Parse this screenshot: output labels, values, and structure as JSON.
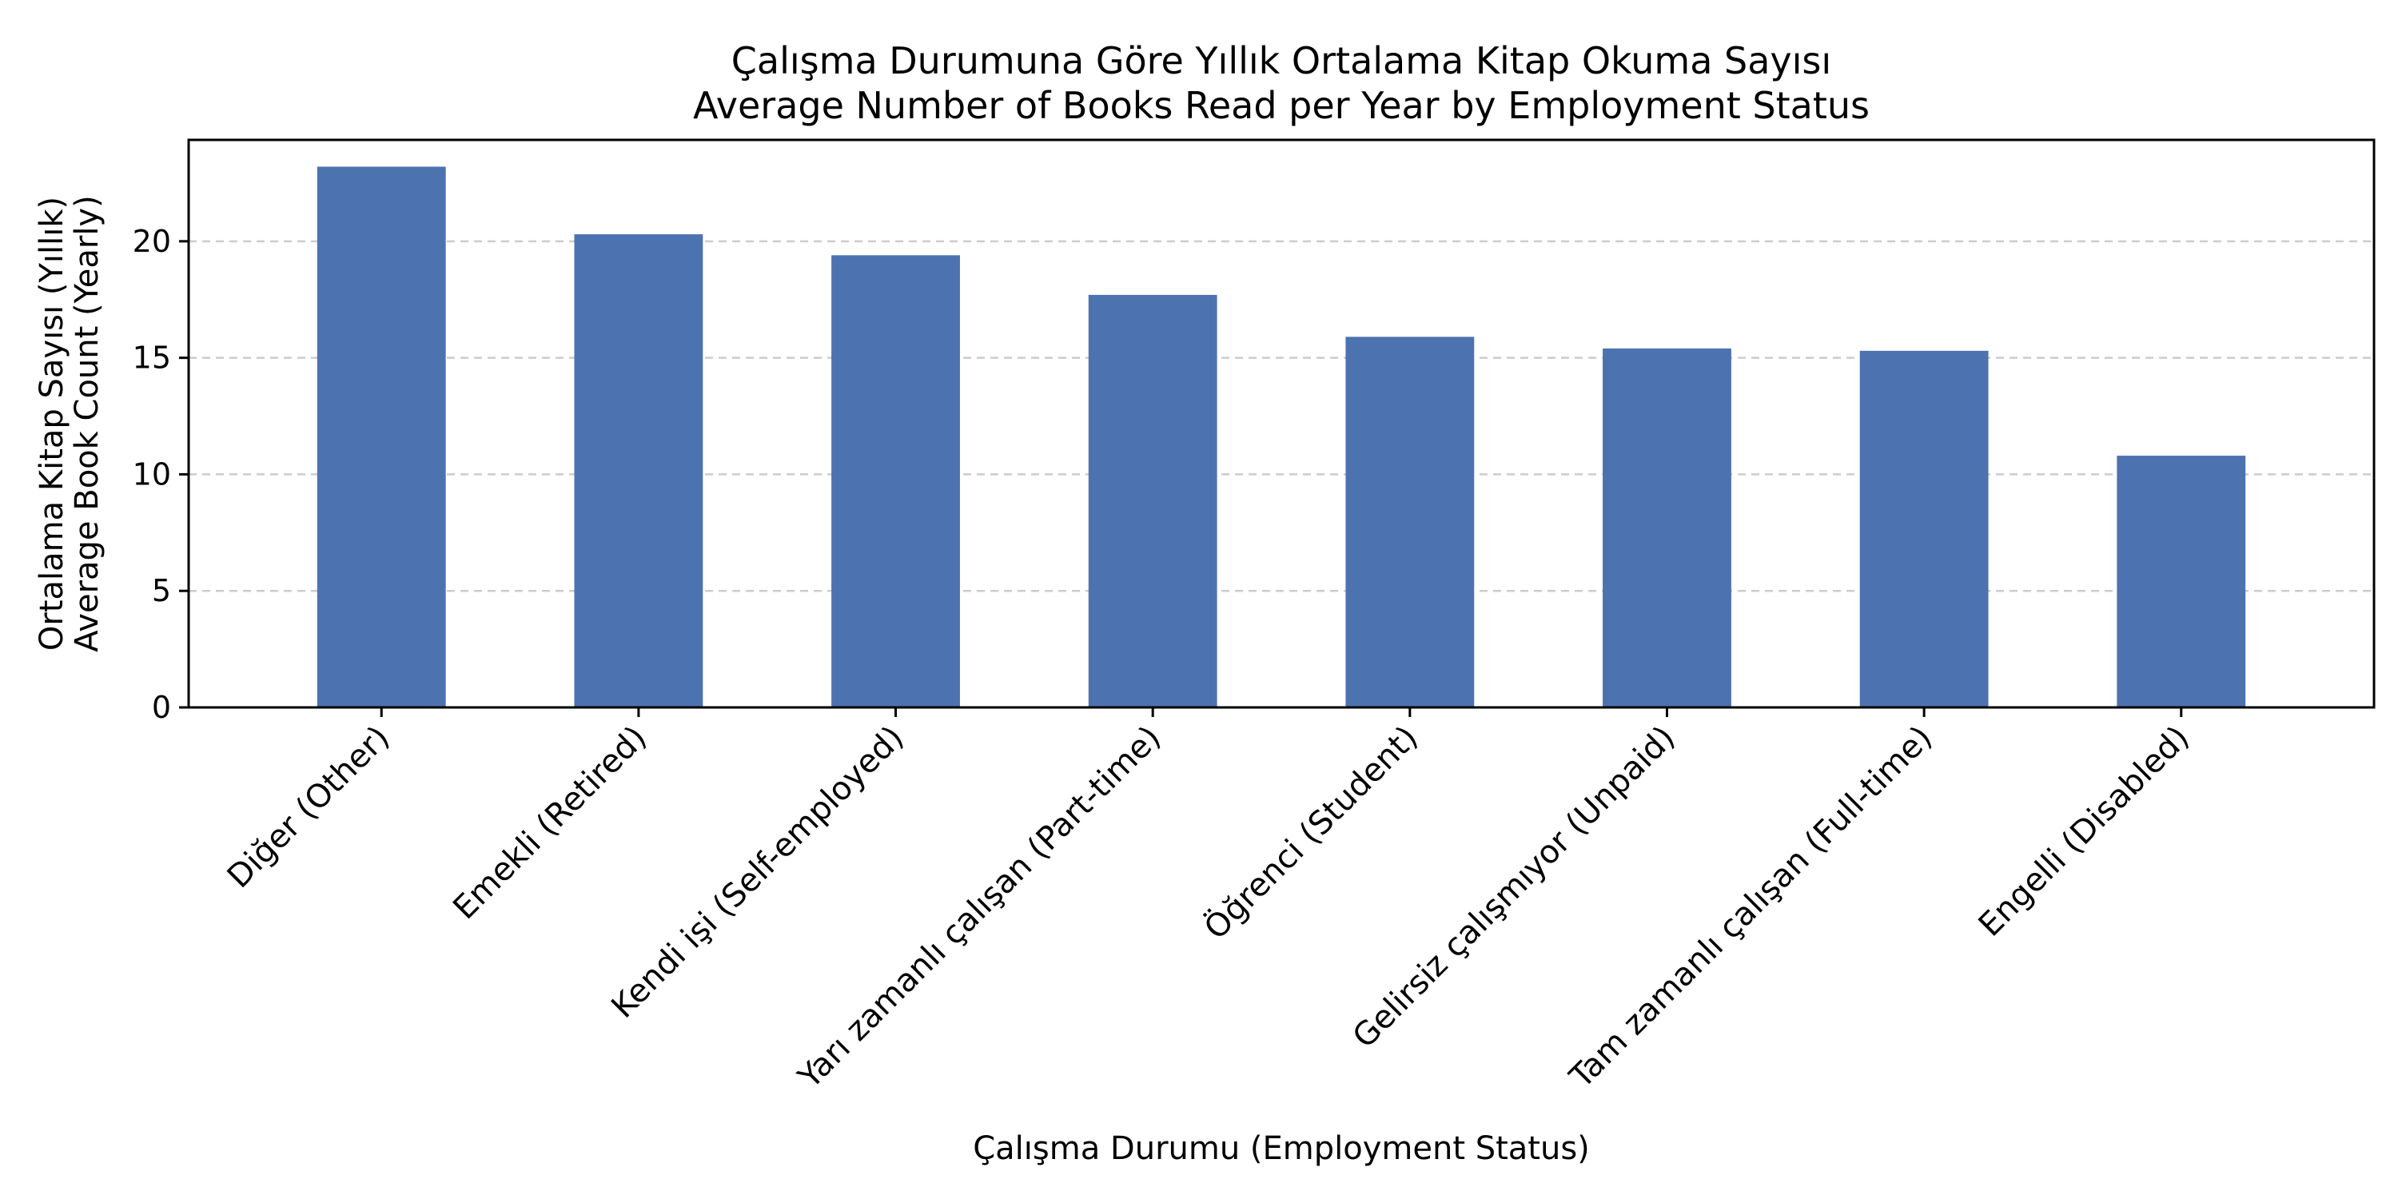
{
  "chart_data": {
    "type": "bar",
    "title": "Çalışma Durumuna Göre Yıllık Ortalama Kitap Okuma Sayısı",
    "subtitle": "Average Number of Books Read per Year by Employment Status",
    "xlabel": "Çalışma Durumu (Employment Status)",
    "ylabel": [
      "Ortalama Kitap Sayısı (Yıllık)",
      "Average Book Count (Yearly)"
    ],
    "categories": [
      "Diğer (Other)",
      "Emekli (Retired)",
      "Kendi işi (Self-employed)",
      "Yarı zamanlı çalışan (Part-time)",
      "Öğrenci (Student)",
      "Gelirsiz çalışmıyor (Unpaid)",
      "Tam zamanlı çalışan (Full-time)",
      "Engelli (Disabled)"
    ],
    "values": [
      23.2,
      20.3,
      19.4,
      17.7,
      15.9,
      15.4,
      15.3,
      10.8
    ],
    "ylim": [
      0,
      24.35
    ],
    "yticks": [
      0,
      5,
      10,
      15,
      20
    ],
    "grid": "y-dashed",
    "colors": {
      "bar": "#4c72b0"
    }
  }
}
